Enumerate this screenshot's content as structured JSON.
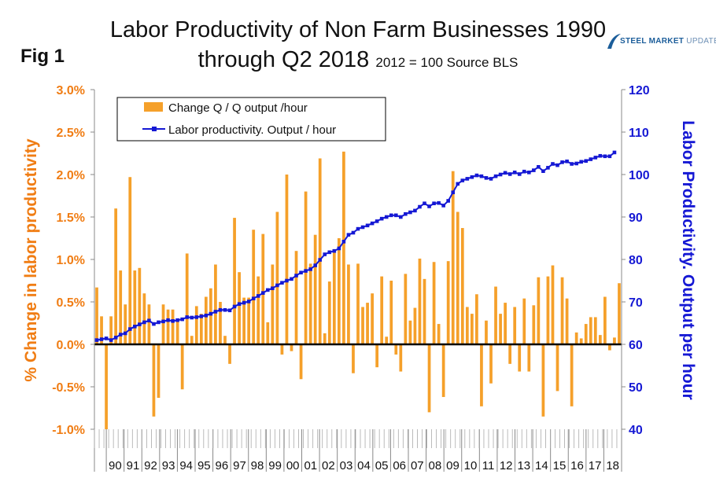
{
  "header": {
    "title_line1": "Labor Productivity of Non Farm Businesses 1990",
    "title_line2": "through Q2 2018",
    "title_sub": "2012 = 100 Source BLS",
    "fig_label": "Fig 1",
    "logo_main": "STEEL MARKET",
    "logo_sub": "UPDATE"
  },
  "colors": {
    "bars": "#f5a02a",
    "line": "#1518d4",
    "left_axis": "#f07d14",
    "right_axis": "#1518d4"
  },
  "chart_data": {
    "type": "bar+line",
    "title": "Labor Productivity of Non Farm Businesses 1990 through Q2 2018 2012 = 100 Source BLS",
    "ylabel_left": "% Change in labor productivity",
    "ylabel_right": "Labor Productivity. Output per hour",
    "ylim_left": [
      -1.0,
      3.0
    ],
    "ylim_right": [
      40,
      120
    ],
    "left_ticks": [
      "3.0%",
      "2.5%",
      "2.0%",
      "1.5%",
      "1.0%",
      "0.5%",
      "0.0%",
      "-0.5%",
      "-1.0%"
    ],
    "right_ticks": [
      "120",
      "110",
      "100",
      "90",
      "80",
      "70",
      "60",
      "50",
      "40"
    ],
    "x_labels": [
      "90",
      "91",
      "92",
      "93",
      "94",
      "95",
      "96",
      "97",
      "98",
      "99",
      "00",
      "01",
      "02",
      "03",
      "04",
      "05",
      "06",
      "07",
      "08",
      "09",
      "10",
      "11",
      "12",
      "13",
      "14",
      "15",
      "16",
      "17",
      "18"
    ],
    "legend": [
      "Change Q / Q output /hour",
      "Labor productivity. Output / hour"
    ],
    "series": [
      {
        "name": "Change Q / Q output /hour",
        "axis": "left",
        "type": "bar",
        "values": [
          0.67,
          0.33,
          -1.0,
          0.33,
          1.6,
          0.87,
          0.47,
          1.97,
          0.87,
          0.9,
          0.6,
          0.47,
          -0.85,
          -0.63,
          0.47,
          0.41,
          0.41,
          0.3,
          -0.53,
          1.07,
          0.1,
          0.45,
          0.36,
          0.56,
          0.66,
          0.94,
          0.5,
          0.1,
          -0.23,
          1.49,
          0.85,
          0.55,
          0.55,
          1.35,
          0.8,
          1.3,
          0.26,
          0.94,
          1.56,
          -0.12,
          2.0,
          -0.08,
          1.1,
          -0.41,
          1.8,
          0.95,
          1.29,
          2.19,
          0.13,
          0.74,
          1.08,
          1.25,
          2.27,
          0.94,
          -0.34,
          0.95,
          0.44,
          0.49,
          0.6,
          -0.27,
          0.8,
          0.09,
          0.75,
          -0.12,
          -0.32,
          0.83,
          0.28,
          0.43,
          1.01,
          0.77,
          -0.8,
          0.97,
          0.24,
          -0.62,
          0.98,
          2.04,
          1.56,
          1.37,
          0.44,
          0.36,
          0.59,
          -0.73,
          0.28,
          -0.46,
          0.68,
          0.36,
          0.49,
          -0.23,
          0.44,
          -0.32,
          0.54,
          -0.32,
          0.46,
          0.79,
          -0.85,
          0.8,
          0.93,
          -0.55,
          0.79,
          0.54,
          -0.73,
          0.14,
          0.07,
          0.24,
          0.32,
          0.32,
          0.11,
          0.56,
          -0.07,
          0.08,
          0.72
        ]
      },
      {
        "name": "Labor productivity. Output / hour",
        "axis": "right",
        "type": "line",
        "values": [
          61.0,
          61.2,
          61.4,
          61.0,
          61.6,
          62.3,
          62.6,
          63.6,
          64.2,
          64.7,
          65.2,
          65.6,
          64.8,
          65.2,
          65.4,
          65.7,
          65.5,
          65.7,
          65.9,
          66.4,
          66.3,
          66.4,
          66.6,
          66.8,
          67.2,
          67.7,
          68.1,
          68.1,
          68.0,
          68.9,
          69.5,
          69.8,
          70.1,
          70.8,
          71.4,
          72.1,
          72.8,
          73.2,
          73.9,
          74.5,
          75.0,
          75.4,
          76.2,
          76.9,
          77.3,
          77.7,
          78.6,
          79.9,
          81.2,
          81.7,
          82.0,
          82.6,
          84.2,
          85.8,
          86.3,
          87.2,
          87.6,
          88.0,
          88.5,
          89.0,
          89.6,
          90.0,
          90.4,
          90.4,
          90.0,
          90.7,
          91.1,
          91.5,
          92.4,
          93.2,
          92.5,
          93.2,
          93.3,
          92.7,
          93.8,
          95.8,
          97.8,
          98.6,
          99.0,
          99.4,
          99.8,
          99.6,
          99.2,
          99.0,
          99.6,
          100.0,
          100.4,
          100.1,
          100.5,
          100.1,
          100.7,
          100.5,
          101.0,
          101.8,
          100.8,
          101.6,
          102.5,
          102.2,
          102.9,
          103.1,
          102.5,
          102.6,
          103.0,
          103.2,
          103.6,
          104.0,
          104.4,
          104.3,
          104.3,
          105.2
        ]
      }
    ]
  }
}
